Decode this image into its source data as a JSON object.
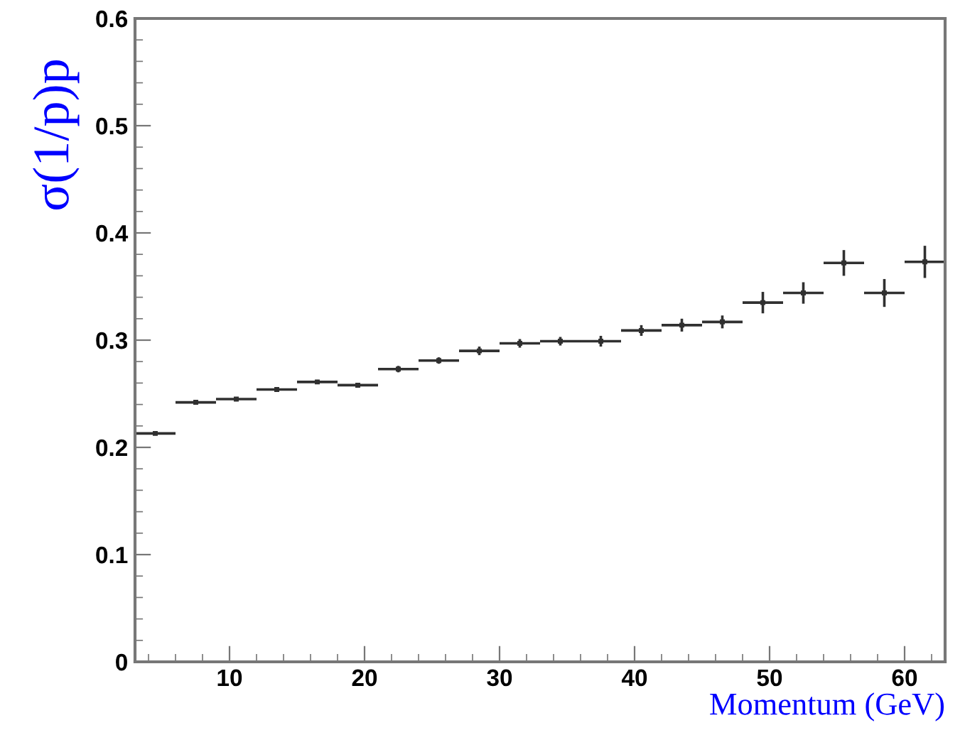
{
  "chart_data": {
    "type": "scatter",
    "xlabel": "Momentum (GeV)",
    "ylabel": "σ(1/p)p",
    "x": [
      4.5,
      7.5,
      10.5,
      13.5,
      16.5,
      19.5,
      22.5,
      25.5,
      28.5,
      31.5,
      34.5,
      37.5,
      40.5,
      43.5,
      46.5,
      49.5,
      52.5,
      55.5,
      58.5,
      61.5
    ],
    "series": [
      {
        "color": "#303030",
        "values": [
          0.213,
          0.242,
          0.245,
          0.254,
          0.261,
          0.258,
          0.273,
          0.281,
          0.29,
          0.297,
          0.299,
          0.299,
          0.309,
          0.314,
          0.317,
          0.335,
          0.344,
          0.372,
          0.344,
          0.373
        ],
        "errors": [
          0.001,
          0.001,
          0.002,
          0.002,
          0.002,
          0.002,
          0.003,
          0.003,
          0.004,
          0.004,
          0.004,
          0.005,
          0.005,
          0.006,
          0.006,
          0.01,
          0.01,
          0.012,
          0.013,
          0.015
        ],
        "xerrors": [
          1.5,
          1.5,
          1.5,
          1.5,
          1.5,
          1.5,
          1.5,
          1.5,
          1.5,
          1.5,
          1.5,
          1.5,
          1.5,
          1.5,
          1.5,
          1.5,
          1.5,
          1.5,
          1.5,
          1.5
        ]
      }
    ],
    "xlim": [
      3,
      63
    ],
    "xticks": [
      10,
      20,
      30,
      40,
      50,
      60
    ],
    "ylim": [
      0,
      0.6
    ],
    "yticks": [
      0,
      0.1,
      0.2,
      0.3,
      0.4,
      0.5,
      0.6
    ],
    "grid": false,
    "legend": false
  }
}
